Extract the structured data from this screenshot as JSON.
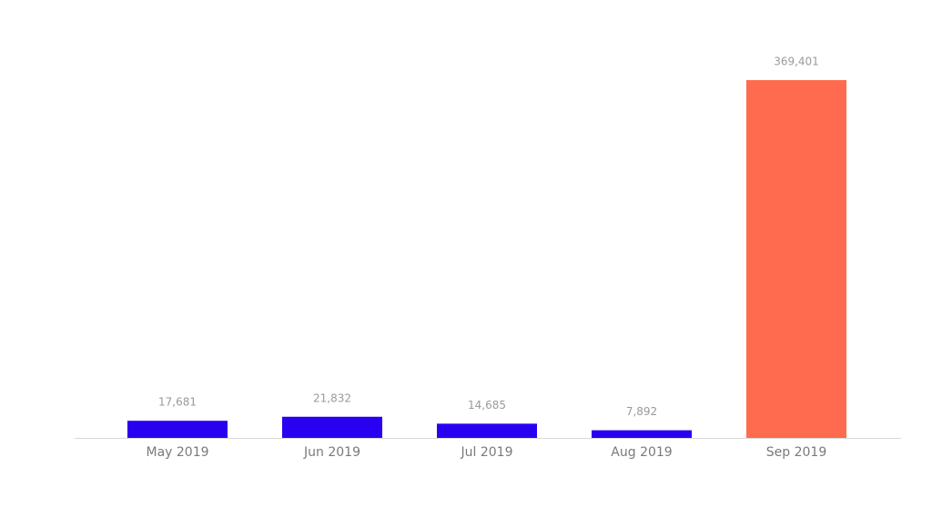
{
  "chart_data": {
    "type": "bar",
    "categories": [
      "May 2019",
      "Jun 2019",
      "Jul 2019",
      "Aug 2019",
      "Sep 2019"
    ],
    "values": [
      17681,
      21832,
      14685,
      7892,
      369401
    ],
    "value_labels": [
      "17,681",
      "21,832",
      "14,685",
      "7,892",
      "369,401"
    ],
    "colors": [
      "#2a00f0",
      "#2a00f0",
      "#2a00f0",
      "#2a00f0",
      "#ff6b4e"
    ]
  }
}
